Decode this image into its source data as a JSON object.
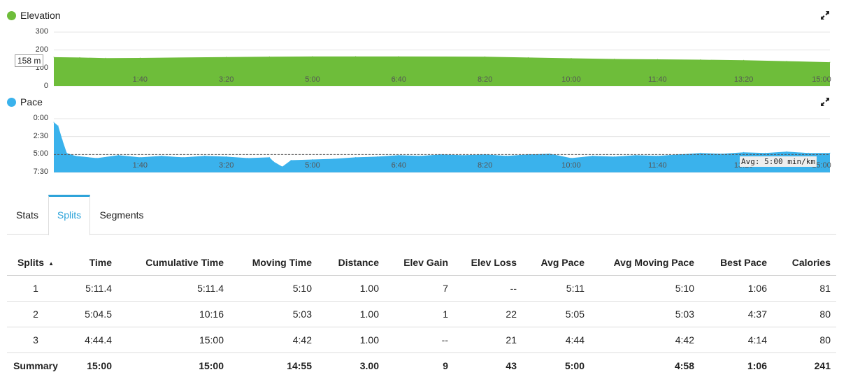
{
  "elevation_chart": {
    "title": "Elevation",
    "color": "#6ebd3a",
    "y_ticks": [
      "300",
      "200",
      "100",
      "0"
    ],
    "x_ticks": [
      "1:40",
      "3:20",
      "5:00",
      "6:40",
      "8:20",
      "10:00",
      "11:40",
      "13:20",
      "15:00"
    ],
    "hover_value": "158 m"
  },
  "pace_chart": {
    "title": "Pace",
    "color": "#3ab2ec",
    "y_ticks": [
      "0:00",
      "2:30",
      "5:00",
      "7:30"
    ],
    "x_ticks": [
      "1:40",
      "3:20",
      "5:00",
      "6:40",
      "8:20",
      "10:00",
      "11:40",
      "13:20",
      "15:00"
    ],
    "avg_label": "Avg: 5:00 min/km"
  },
  "chart_data": [
    {
      "type": "area",
      "title": "Elevation",
      "x": [
        0,
        30,
        60,
        100,
        200,
        250,
        300,
        350,
        400,
        500,
        550,
        600,
        650,
        700,
        750,
        800,
        850,
        900
      ],
      "values": [
        160,
        158,
        155,
        156,
        161,
        163,
        164,
        164,
        164,
        163,
        158,
        154,
        150,
        148,
        146,
        143,
        138,
        132
      ],
      "ylim": [
        0,
        300
      ],
      "xlim": [
        0,
        900
      ]
    },
    {
      "type": "area",
      "title": "Pace",
      "x": [
        0,
        5,
        10,
        15,
        25,
        50,
        75,
        100,
        125,
        150,
        175,
        200,
        225,
        250,
        255,
        265,
        275,
        300,
        325,
        350,
        375,
        400,
        425,
        450,
        475,
        500,
        525,
        550,
        575,
        600,
        625,
        650,
        675,
        700,
        725,
        750,
        775,
        800,
        825,
        850,
        875,
        900
      ],
      "values": [
        0.5,
        1.0,
        3.0,
        4.8,
        5.2,
        5.5,
        5.1,
        5.4,
        5.2,
        5.4,
        5.2,
        5.3,
        5.5,
        5.4,
        6.0,
        6.7,
        5.8,
        5.7,
        5.6,
        5.4,
        5.3,
        5.1,
        5.2,
        5.0,
        5.1,
        5.0,
        5.2,
        5.0,
        4.9,
        5.5,
        5.2,
        5.3,
        5.1,
        5.2,
        5.0,
        4.8,
        4.9,
        4.7,
        4.8,
        4.6,
        4.8,
        4.8
      ],
      "avg": 5.0,
      "ylim": [
        0,
        7.5
      ],
      "xlim": [
        0,
        900
      ]
    }
  ],
  "tabs": [
    {
      "label": "Stats"
    },
    {
      "label": "Splits"
    },
    {
      "label": "Segments"
    }
  ],
  "table": {
    "headers": [
      "Splits",
      "Time",
      "Cumulative Time",
      "Moving Time",
      "Distance",
      "Elev Gain",
      "Elev Loss",
      "Avg Pace",
      "Avg Moving Pace",
      "Best Pace",
      "Calories"
    ],
    "sort_indicator": "▲",
    "rows": [
      [
        "1",
        "5:11.4",
        "5:11.4",
        "5:10",
        "1.00",
        "7",
        "--",
        "5:11",
        "5:10",
        "1:06",
        "81"
      ],
      [
        "2",
        "5:04.5",
        "10:16",
        "5:03",
        "1.00",
        "1",
        "22",
        "5:05",
        "5:03",
        "4:37",
        "80"
      ],
      [
        "3",
        "4:44.4",
        "15:00",
        "4:42",
        "1.00",
        "--",
        "21",
        "4:44",
        "4:42",
        "4:14",
        "80"
      ]
    ],
    "summary": [
      "Summary",
      "15:00",
      "15:00",
      "14:55",
      "3.00",
      "9",
      "43",
      "5:00",
      "4:58",
      "1:06",
      "241"
    ]
  }
}
